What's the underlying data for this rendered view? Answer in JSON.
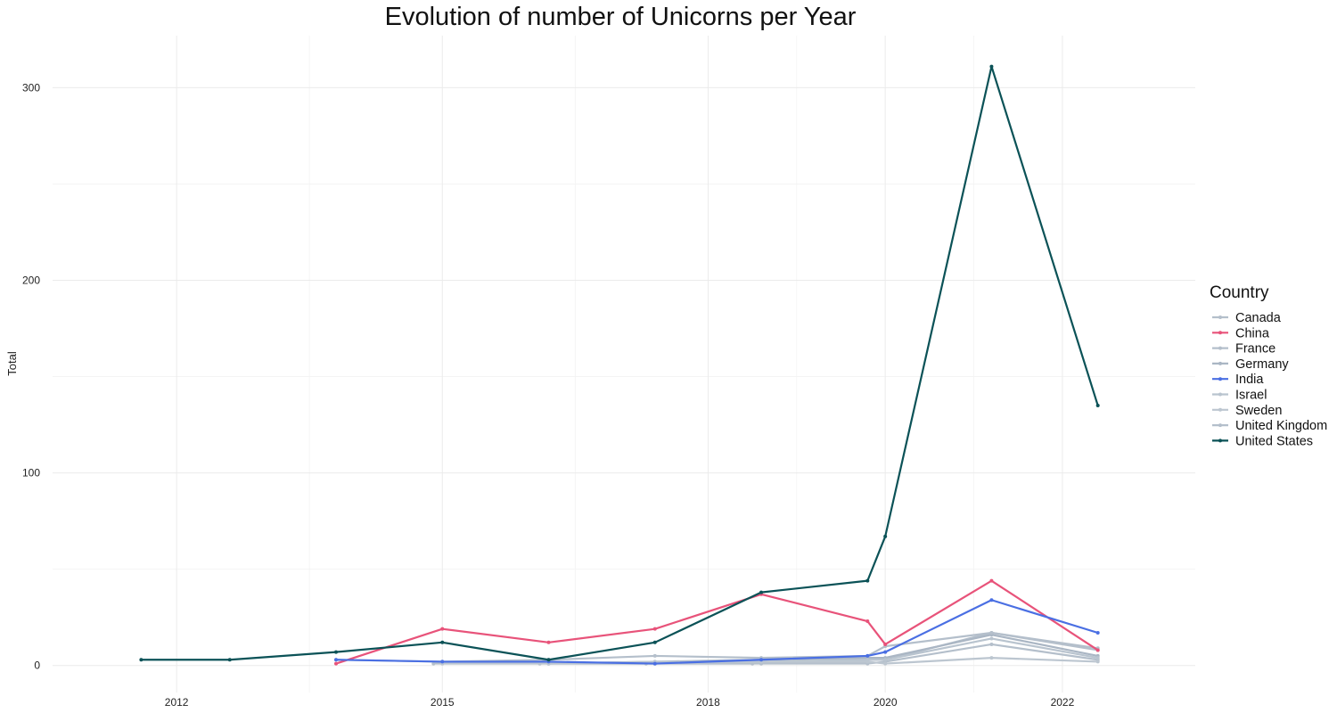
{
  "chart_data": {
    "type": "line",
    "title": "Evolution of number of Unicorns per Year",
    "xlabel": "",
    "ylabel": "Total",
    "xlim": [
      2010.6,
      2023.5
    ],
    "ylim": [
      -14,
      327
    ],
    "x_ticks": [
      2012,
      2015,
      2018,
      2020,
      2022
    ],
    "x_tick_labels": [
      "2012",
      "2015",
      "2018",
      "2020",
      "2022"
    ],
    "x_minor_ticks": [
      2013.5,
      2016.5,
      2019.0,
      2021.0
    ],
    "y_ticks": [
      0,
      100,
      200,
      300
    ],
    "y_tick_labels": [
      "0",
      "100",
      "200",
      "300"
    ],
    "y_minor_ticks": [
      50,
      150,
      250
    ],
    "grid": true,
    "legend": {
      "title": "Country",
      "placement": "right"
    },
    "series": [
      {
        "name": "Canada",
        "color": "#b4bfcb",
        "points": [
          [
            2014.9,
            1
          ],
          [
            2016.1,
            1
          ],
          [
            2017.3,
            1
          ],
          [
            2018.5,
            1
          ],
          [
            2019.5,
            3
          ],
          [
            2020.0,
            3
          ],
          [
            2021.2,
            17
          ],
          [
            2022.4,
            8
          ]
        ]
      },
      {
        "name": "China",
        "color": "#e8537a",
        "points": [
          [
            2013.8,
            1
          ],
          [
            2015.0,
            19
          ],
          [
            2016.2,
            12
          ],
          [
            2017.4,
            19
          ],
          [
            2018.6,
            37
          ],
          [
            2019.8,
            23
          ],
          [
            2020.0,
            11
          ],
          [
            2021.2,
            44
          ],
          [
            2022.4,
            8
          ]
        ]
      },
      {
        "name": "France",
        "color": "#b4bfcb",
        "points": [
          [
            2016.2,
            1
          ],
          [
            2017.4,
            1
          ],
          [
            2018.6,
            1
          ],
          [
            2019.8,
            1
          ],
          [
            2020.0,
            2
          ],
          [
            2021.2,
            11
          ],
          [
            2022.4,
            3
          ]
        ]
      },
      {
        "name": "Germany",
        "color": "#aab6c4",
        "points": [
          [
            2016.2,
            1
          ],
          [
            2017.4,
            2
          ],
          [
            2018.6,
            3
          ],
          [
            2019.8,
            4
          ],
          [
            2020.0,
            4
          ],
          [
            2021.2,
            16
          ],
          [
            2022.4,
            5
          ]
        ]
      },
      {
        "name": "India",
        "color": "#4a6fe3",
        "points": [
          [
            2013.8,
            3
          ],
          [
            2015.0,
            2
          ],
          [
            2016.2,
            2
          ],
          [
            2017.4,
            1
          ],
          [
            2018.6,
            3
          ],
          [
            2019.8,
            5
          ],
          [
            2020.0,
            7
          ],
          [
            2021.2,
            34
          ],
          [
            2022.4,
            17
          ]
        ]
      },
      {
        "name": "Israel",
        "color": "#b9c4cf",
        "points": [
          [
            2016.2,
            1
          ],
          [
            2017.4,
            2
          ],
          [
            2018.6,
            2
          ],
          [
            2019.8,
            3
          ],
          [
            2020.0,
            3
          ],
          [
            2021.2,
            14
          ],
          [
            2022.4,
            4
          ]
        ]
      },
      {
        "name": "Sweden",
        "color": "#bcc6d0",
        "points": [
          [
            2015.0,
            1
          ],
          [
            2016.2,
            1
          ],
          [
            2017.4,
            1
          ],
          [
            2018.6,
            2
          ],
          [
            2019.8,
            2
          ],
          [
            2020.0,
            1
          ],
          [
            2021.2,
            4
          ],
          [
            2022.4,
            2
          ]
        ]
      },
      {
        "name": "United Kingdom",
        "color": "#b4bfcb",
        "points": [
          [
            2013.8,
            3
          ],
          [
            2015.0,
            2
          ],
          [
            2016.2,
            3
          ],
          [
            2017.4,
            5
          ],
          [
            2018.6,
            4
          ],
          [
            2019.8,
            5
          ],
          [
            2020.0,
            10
          ],
          [
            2021.2,
            17
          ],
          [
            2022.4,
            9
          ]
        ]
      },
      {
        "name": "United States",
        "color": "#0b5257",
        "points": [
          [
            2011.6,
            3
          ],
          [
            2012.6,
            3
          ],
          [
            2013.8,
            7
          ],
          [
            2015.0,
            12
          ],
          [
            2016.2,
            3
          ],
          [
            2017.4,
            12
          ],
          [
            2018.6,
            38
          ],
          [
            2019.8,
            44
          ],
          [
            2020.0,
            67
          ],
          [
            2021.2,
            311
          ],
          [
            2022.4,
            135
          ]
        ]
      }
    ]
  }
}
